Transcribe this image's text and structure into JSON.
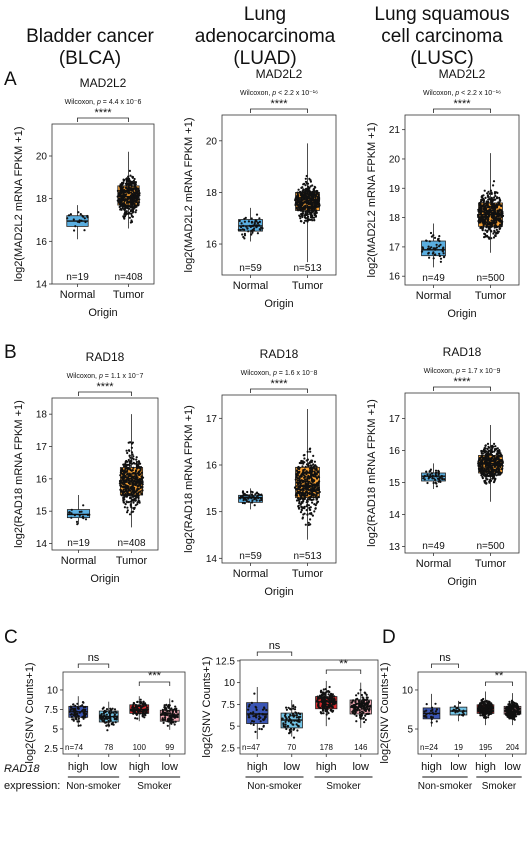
{
  "headers": [
    {
      "line1": "",
      "line2": "Bladder cancer",
      "line3": "(BLCA)"
    },
    {
      "line1": "Lung",
      "line2": "adenocarcinoma",
      "line3": "(LUAD)"
    },
    {
      "line1": "Lung squamous",
      "line2": "cell carcinoma",
      "line3": "(LUSC)"
    }
  ],
  "panel_letters": [
    "A",
    "B",
    "C",
    "D"
  ],
  "colors": {
    "normal": "#5aaee0",
    "tumor": "#f7a033",
    "nonsmoker_high": "#3a55b4",
    "nonsmoker_low": "#73c4e6",
    "smoker_high": "#dc2b2e",
    "smoker_low": "#f0a7b3"
  },
  "chart_data": [
    {
      "id": "A1",
      "type": "box",
      "title": "MAD2L2",
      "stat": "Wilcoxon, p = 4.4 x 10-6",
      "sig": "****",
      "ylabel": "log2(MAD2L2 mRNA FPKM +1)",
      "xlabel": "Origin",
      "ylim": [
        14,
        21.5
      ],
      "yticks": [
        14,
        16,
        18,
        20
      ],
      "categories": [
        "Normal",
        "Tumor"
      ],
      "n_labels": [
        "n=19",
        "n=408"
      ],
      "n": [
        19,
        408
      ],
      "boxes": [
        {
          "q1": 16.7,
          "median": 16.95,
          "q3": 17.2,
          "lo": 16.1,
          "hi": 17.7
        },
        {
          "q1": 17.7,
          "median": 18.1,
          "q3": 18.6,
          "lo": 16.6,
          "hi": 20.2
        }
      ]
    },
    {
      "id": "A2",
      "type": "box",
      "title": "MAD2L2",
      "stat": "Wilcoxon, p < 2.2 x 10-16",
      "sig": "****",
      "ylabel": "log2(MAD2L2 mRNA FPKM +1)",
      "xlabel": "Origin",
      "ylim": [
        14.8,
        21
      ],
      "yticks": [
        16,
        18,
        20
      ],
      "categories": [
        "Normal",
        "Tumor"
      ],
      "n_labels": [
        "n=59",
        "n=513"
      ],
      "n": [
        59,
        513
      ],
      "boxes": [
        {
          "q1": 16.5,
          "median": 16.7,
          "q3": 16.95,
          "lo": 16.1,
          "hi": 17.4
        },
        {
          "q1": 17.3,
          "median": 17.6,
          "q3": 18.0,
          "lo": 15.3,
          "hi": 19.9
        }
      ]
    },
    {
      "id": "A3",
      "type": "box",
      "title": "MAD2L2",
      "stat": "Wilcoxon, p < 2.2 x 10-16",
      "sig": "****",
      "ylabel": "log2(MAD2L2 mRNA FPKM +1)",
      "xlabel": "Origin",
      "ylim": [
        15.7,
        21.5
      ],
      "yticks": [
        16,
        17,
        18,
        19,
        20,
        21
      ],
      "categories": [
        "Normal",
        "Tumor"
      ],
      "n_labels": [
        "n=49",
        "n=500"
      ],
      "n": [
        49,
        500
      ],
      "boxes": [
        {
          "q1": 16.7,
          "median": 16.9,
          "q3": 17.2,
          "lo": 16.3,
          "hi": 17.8
        },
        {
          "q1": 17.7,
          "median": 18.1,
          "q3": 18.5,
          "lo": 16.8,
          "hi": 20.2
        }
      ]
    },
    {
      "id": "B1",
      "type": "box",
      "title": "RAD18",
      "stat": "Wilcoxon, p = 1.1 x 10-7",
      "sig": "****",
      "ylabel": "log2(RAD18 mRNA FPKM +1)",
      "xlabel": "Origin",
      "ylim": [
        13.8,
        18.5
      ],
      "yticks": [
        14,
        15,
        16,
        17,
        18
      ],
      "categories": [
        "Normal",
        "Tumor"
      ],
      "n_labels": [
        "n=19",
        "n=408"
      ],
      "n": [
        19,
        408
      ],
      "boxes": [
        {
          "q1": 14.8,
          "median": 14.9,
          "q3": 15.05,
          "lo": 14.6,
          "hi": 15.5
        },
        {
          "q1": 15.5,
          "median": 15.9,
          "q3": 16.35,
          "lo": 14.5,
          "hi": 18.0
        }
      ]
    },
    {
      "id": "B2",
      "type": "box",
      "title": "RAD18",
      "stat": "Wilcoxon, p = 1.6 x 10-8",
      "sig": "****",
      "ylabel": "log2(RAD18 mRNA FPKM +1)",
      "xlabel": "Origin",
      "ylim": [
        13.9,
        17.5
      ],
      "yticks": [
        14,
        15,
        16,
        17
      ],
      "categories": [
        "Normal",
        "Tumor"
      ],
      "n_labels": [
        "n=59",
        "n=513"
      ],
      "n": [
        59,
        513
      ],
      "boxes": [
        {
          "q1": 15.2,
          "median": 15.3,
          "q3": 15.35,
          "lo": 15.05,
          "hi": 15.5
        },
        {
          "q1": 15.3,
          "median": 15.55,
          "q3": 15.95,
          "lo": 14.4,
          "hi": 17.2
        }
      ]
    },
    {
      "id": "B3",
      "type": "box",
      "title": "RAD18",
      "stat": "Wilcoxon, p = 1.7 x 10-9",
      "sig": "****",
      "ylabel": "log2(RAD18 mRNA FPKM +1)",
      "xlabel": "Origin",
      "ylim": [
        12.8,
        17.8
      ],
      "yticks": [
        13,
        14,
        15,
        16,
        17
      ],
      "categories": [
        "Normal",
        "Tumor"
      ],
      "n_labels": [
        "n=49",
        "n=500"
      ],
      "n": [
        49,
        500
      ],
      "boxes": [
        {
          "q1": 15.05,
          "median": 15.2,
          "q3": 15.3,
          "lo": 14.8,
          "hi": 15.6
        },
        {
          "q1": 15.3,
          "median": 15.6,
          "q3": 15.85,
          "lo": 14.4,
          "hi": 16.8
        }
      ]
    },
    {
      "id": "C1",
      "type": "box",
      "ylabel": "log2(SNV Counts+1)",
      "ylim": [
        1.8,
        12.3
      ],
      "yticks": [
        2.5,
        5,
        7.5,
        10
      ],
      "categories": [
        "high",
        "low",
        "high",
        "low"
      ],
      "n_labels": [
        "n=74",
        "78",
        "100",
        "99"
      ],
      "n": [
        74,
        78,
        100,
        99
      ],
      "groups": [
        "Non-smoker",
        "Smoker"
      ],
      "sig": [
        "ns",
        "***"
      ],
      "boxes": [
        {
          "q1": 6.5,
          "median": 7.2,
          "q3": 7.9,
          "lo": 5.5,
          "hi": 9.2
        },
        {
          "q1": 5.9,
          "median": 6.6,
          "q3": 7.3,
          "lo": 5.2,
          "hi": 8.5
        },
        {
          "q1": 7.0,
          "median": 7.5,
          "q3": 8.1,
          "lo": 6.0,
          "hi": 9.2
        },
        {
          "q1": 6.0,
          "median": 6.8,
          "q3": 7.4,
          "lo": 4.9,
          "hi": 8.9
        }
      ]
    },
    {
      "id": "C2",
      "type": "box",
      "ylabel": "log2(SNV Counts+1)",
      "ylim": [
        1.8,
        12.6
      ],
      "yticks": [
        2.5,
        5,
        7.5,
        10,
        12.5
      ],
      "categories": [
        "high",
        "low",
        "high",
        "low"
      ],
      "n_labels": [
        "n=47",
        "70",
        "178",
        "146"
      ],
      "n": [
        47,
        70,
        178,
        146
      ],
      "groups": [
        "Non-smoker",
        "Smoker"
      ],
      "sig": [
        "ns",
        "**"
      ],
      "boxes": [
        {
          "q1": 5.3,
          "median": 6.4,
          "q3": 7.7,
          "lo": 3.5,
          "hi": 9.5
        },
        {
          "q1": 4.8,
          "median": 5.7,
          "q3": 6.5,
          "lo": 3.8,
          "hi": 8.0
        },
        {
          "q1": 7.0,
          "median": 7.8,
          "q3": 8.4,
          "lo": 5.0,
          "hi": 10.2
        },
        {
          "q1": 6.4,
          "median": 7.2,
          "q3": 8.0,
          "lo": 4.8,
          "hi": 10.0
        }
      ]
    },
    {
      "id": "D",
      "type": "box",
      "ylabel": "log2(SNV Counts+1)",
      "ylim": [
        1.8,
        12.3
      ],
      "yticks": [
        5,
        10
      ],
      "categories": [
        "high",
        "low",
        "high",
        "low"
      ],
      "n_labels": [
        "n=24",
        "19",
        "195",
        "204"
      ],
      "n": [
        24,
        19,
        195,
        204
      ],
      "groups": [
        "Non-smoker",
        "Smoker"
      ],
      "sig": [
        "ns",
        "**"
      ],
      "boxes": [
        {
          "q1": 6.3,
          "median": 7.0,
          "q3": 7.7,
          "lo": 5.3,
          "hi": 9.5
        },
        {
          "q1": 6.8,
          "median": 7.3,
          "q3": 7.8,
          "lo": 6.0,
          "hi": 8.6
        },
        {
          "q1": 7.0,
          "median": 7.6,
          "q3": 8.1,
          "lo": 5.5,
          "hi": 9.8
        },
        {
          "q1": 6.9,
          "median": 7.3,
          "q3": 7.9,
          "lo": 5.5,
          "hi": 9.6
        }
      ]
    }
  ],
  "expression_label": {
    "gene": "RAD18",
    "rest": "expression:"
  }
}
